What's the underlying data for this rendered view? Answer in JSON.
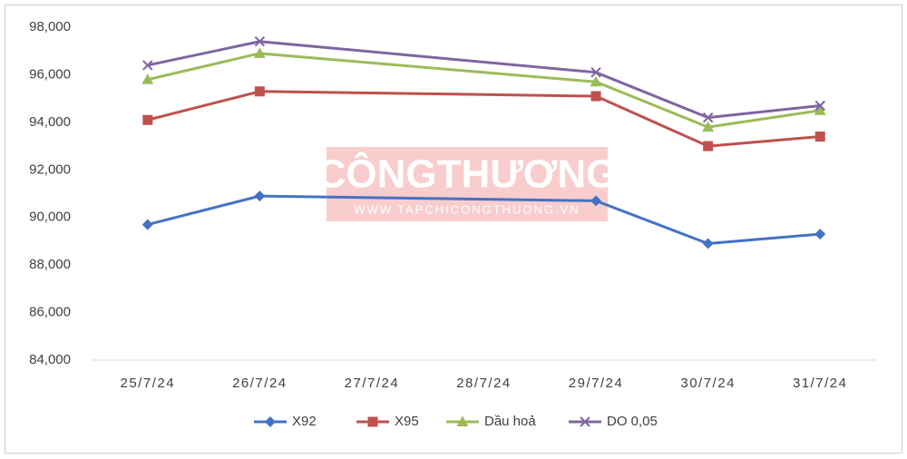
{
  "chart_data": {
    "type": "line",
    "categories": [
      "25/7/24",
      "26/7/24",
      "27/7/24",
      "28/7/24",
      "29/7/24",
      "30/7/24",
      "31/7/24"
    ],
    "series": [
      {
        "name": "X92",
        "color": "#4472c4",
        "marker": "diamond",
        "values": [
          89700,
          90900,
          null,
          null,
          90700,
          88900,
          89300
        ]
      },
      {
        "name": "X95",
        "color": "#c0504d",
        "marker": "square",
        "values": [
          94100,
          95300,
          null,
          null,
          95100,
          93000,
          93400
        ]
      },
      {
        "name": "Dầu hoả",
        "color": "#9bbb59",
        "marker": "triangle",
        "values": [
          95800,
          96900,
          null,
          null,
          95700,
          93800,
          94500
        ]
      },
      {
        "name": "DO 0,05",
        "color": "#8064a2",
        "marker": "x",
        "values": [
          96400,
          97400,
          null,
          null,
          96100,
          94200,
          94700
        ]
      }
    ],
    "ylim": [
      84000,
      98000
    ],
    "yticks": [
      {
        "value": 84000,
        "label": "84,000"
      },
      {
        "value": 86000,
        "label": "86,000"
      },
      {
        "value": 88000,
        "label": "88,000"
      },
      {
        "value": 90000,
        "label": "90,000"
      },
      {
        "value": 92000,
        "label": "92,000"
      },
      {
        "value": 94000,
        "label": "94,000"
      },
      {
        "value": 96000,
        "label": "96,000"
      },
      {
        "value": 98000,
        "label": "98,000"
      }
    ],
    "connect_gaps": true,
    "legend": "bottom",
    "watermark": {
      "title": "CÔNGTHƯƠNG",
      "url": "WWW.TAPCHICONGTHUONG.VN"
    }
  }
}
